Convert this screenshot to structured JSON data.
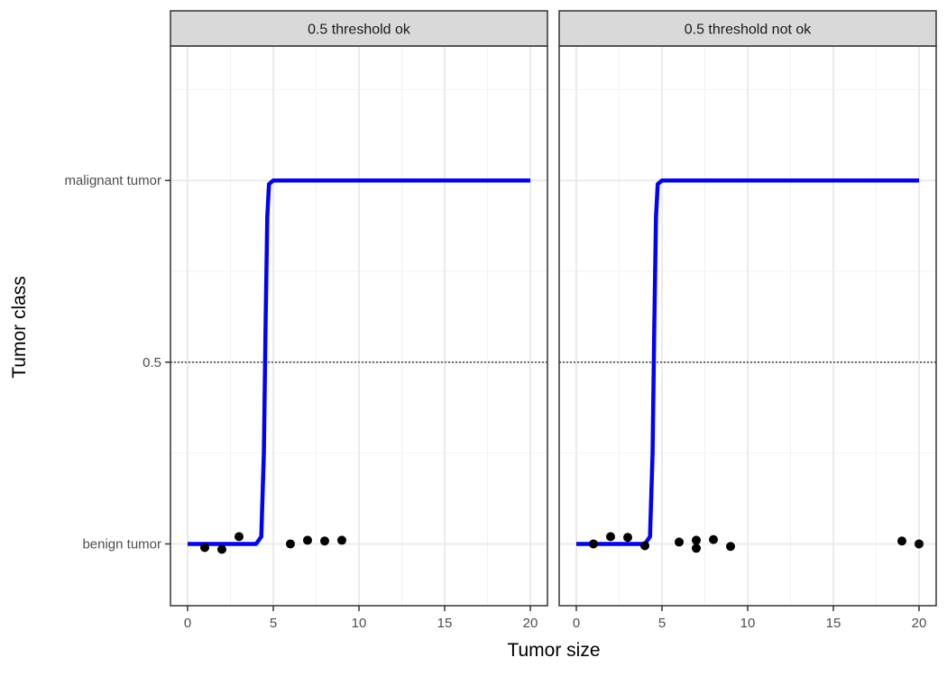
{
  "chart_data": {
    "type": "scatter",
    "xlabel": "Tumor size",
    "ylabel": "Tumor class",
    "xlim": [
      -1,
      21
    ],
    "ylim": [
      -0.17,
      1.37
    ],
    "x_ticks": [
      {
        "value": 0,
        "label": "0"
      },
      {
        "value": 5,
        "label": "5"
      },
      {
        "value": 10,
        "label": "10"
      },
      {
        "value": 15,
        "label": "15"
      },
      {
        "value": 20,
        "label": "20"
      }
    ],
    "y_ticks": [
      {
        "value": 0,
        "label": "benign tumor"
      },
      {
        "value": 0.5,
        "label": "0.5"
      },
      {
        "value": 1,
        "label": "malignant tumor"
      }
    ],
    "threshold": 0.5,
    "grid": true,
    "colors": {
      "curve": "#0000ff",
      "points": "#000000",
      "threshold": "#555555",
      "strip": "#d9d9d9"
    },
    "panels": [
      {
        "title": "0.5 threshold ok",
        "points": [
          {
            "x": 1,
            "y": -0.01
          },
          {
            "x": 2,
            "y": -0.015
          },
          {
            "x": 3,
            "y": 0.02
          },
          {
            "x": 6,
            "y": 0.0
          },
          {
            "x": 7,
            "y": 0.01
          },
          {
            "x": 8,
            "y": 0.008
          },
          {
            "x": 9,
            "y": 0.01
          }
        ],
        "curve": {
          "x": [
            0,
            4,
            4.3,
            4.45,
            4.55,
            4.65,
            4.75,
            5,
            20
          ],
          "y": [
            0,
            0,
            0.02,
            0.25,
            0.6,
            0.9,
            0.99,
            1,
            1
          ]
        }
      },
      {
        "title": "0.5 threshold not ok",
        "points": [
          {
            "x": 1,
            "y": 0.0
          },
          {
            "x": 2,
            "y": 0.02
          },
          {
            "x": 3,
            "y": 0.018
          },
          {
            "x": 4,
            "y": -0.005
          },
          {
            "x": 6,
            "y": 0.005
          },
          {
            "x": 7,
            "y": 0.01
          },
          {
            "x": 7,
            "y": -0.012
          },
          {
            "x": 8,
            "y": 0.012
          },
          {
            "x": 9,
            "y": -0.007
          },
          {
            "x": 19,
            "y": 0.008
          },
          {
            "x": 20,
            "y": 0.0
          }
        ],
        "curve": {
          "x": [
            0,
            4,
            4.3,
            4.45,
            4.55,
            4.65,
            4.75,
            5,
            20
          ],
          "y": [
            0,
            0,
            0.02,
            0.25,
            0.6,
            0.9,
            0.99,
            1,
            1
          ]
        }
      }
    ]
  }
}
